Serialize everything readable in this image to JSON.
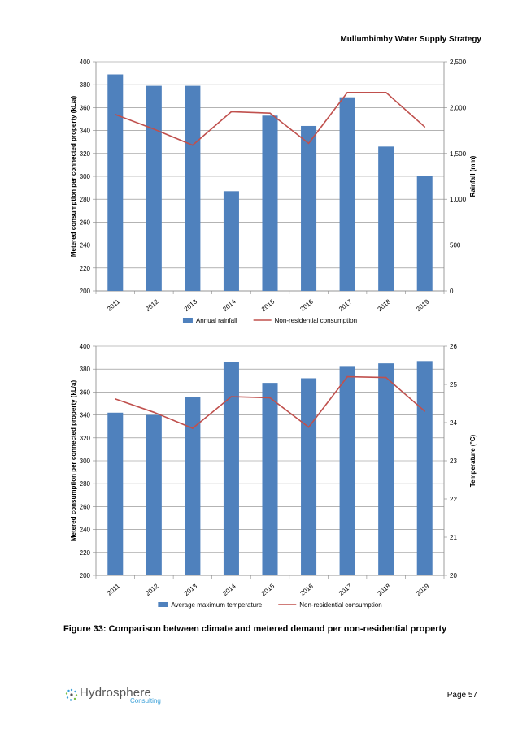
{
  "header": {
    "title": "Mullumbimby Water Supply Strategy"
  },
  "colors": {
    "bar": "#4F81BD",
    "line": "#C0504D",
    "grid": "#868686"
  },
  "chart_data": [
    {
      "type": "bar",
      "categories": [
        "2011",
        "2012",
        "2013",
        "2014",
        "2015",
        "2016",
        "2017",
        "2018",
        "2019"
      ],
      "series": [
        {
          "name": "Annual rainfall",
          "type": "bar",
          "axis": "left",
          "values": [
            389,
            379,
            379,
            287,
            353,
            344,
            369,
            326,
            300
          ]
        },
        {
          "name": "Non-residential consumption",
          "type": "line",
          "axis": "right",
          "values": [
            1925,
            1765,
            1590,
            1955,
            1940,
            1610,
            2165,
            2165,
            1790
          ]
        }
      ],
      "ylabel": "Metered consumption per connected property (kL/a)",
      "y2label": "Rainfall (mm)",
      "ylim": [
        200,
        400
      ],
      "y2lim": [
        0,
        2500
      ],
      "yticks": [
        "200",
        "220",
        "240",
        "260",
        "280",
        "300",
        "320",
        "340",
        "360",
        "380",
        "400"
      ],
      "y2ticks": [
        "0",
        "500",
        "1,000",
        "1,500",
        "2,000",
        "2,500"
      ],
      "grid": true,
      "legend": "bottom"
    },
    {
      "type": "bar",
      "categories": [
        "2011",
        "2012",
        "2013",
        "2014",
        "2015",
        "2016",
        "2017",
        "2018",
        "2019"
      ],
      "series": [
        {
          "name": "Average maximum temperature",
          "type": "bar",
          "axis": "left",
          "values": [
            342,
            340,
            356,
            386,
            368,
            372,
            382,
            385,
            387
          ]
        },
        {
          "name": "Non-residential consumption",
          "type": "line",
          "axis": "right",
          "values": [
            24.62,
            24.27,
            23.85,
            24.68,
            24.65,
            23.88,
            25.2,
            25.18,
            24.3
          ]
        }
      ],
      "ylabel": "Metered consumption per connected property (kL/a)",
      "y2label": "Temperature (°C)",
      "ylim": [
        200,
        400
      ],
      "y2lim": [
        20,
        26
      ],
      "yticks": [
        "200",
        "220",
        "240",
        "260",
        "280",
        "300",
        "320",
        "340",
        "360",
        "380",
        "400"
      ],
      "y2ticks": [
        "20",
        "21",
        "22",
        "23",
        "24",
        "25",
        "26"
      ],
      "grid": true,
      "legend": "bottom"
    }
  ],
  "caption": "Figure 33: Comparison between climate and metered demand per non-residential property",
  "footer": {
    "logo_name": "Hydrosphere",
    "logo_sub": "Consulting",
    "page": "Page 57"
  }
}
